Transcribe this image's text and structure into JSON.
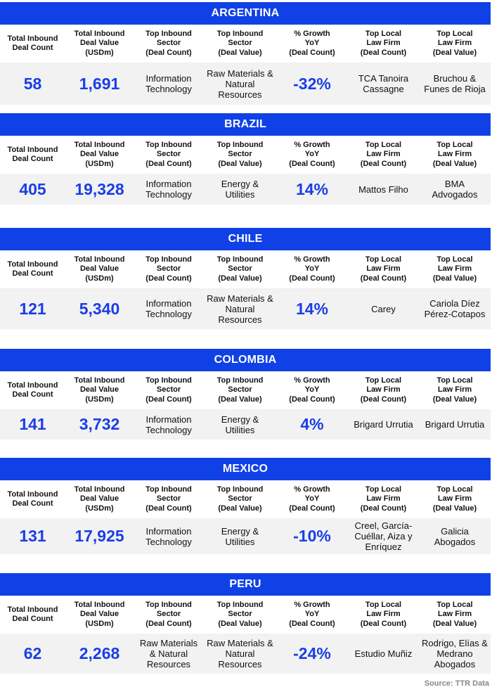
{
  "accent_color": "#1041e6",
  "headers": [
    "Total Inbound Deal Count",
    "Total Inbound Deal Value (USDm)",
    "Top Inbound Sector (Deal Count)",
    "Top Inbound Sector (Deal Value)",
    "% Growth YoY (Deal Count)",
    "Top Local Law Firm (Deal Count)",
    "Top Local Law Firm (Deal Value)"
  ],
  "header_lines": [
    [
      "Total Inbound",
      "Deal Count"
    ],
    [
      "Total Inbound",
      "Deal Value",
      "(USDm)"
    ],
    [
      "Top Inbound",
      "Sector",
      "(Deal Count)"
    ],
    [
      "Top Inbound",
      "Sector",
      "(Deal Value)"
    ],
    [
      "% Growth",
      "YoY",
      "(Deal Count)"
    ],
    [
      "Top Local",
      "Law Firm",
      "(Deal Count)"
    ],
    [
      "Top Local",
      "Law Firm",
      "(Deal Value)"
    ]
  ],
  "sections": [
    {
      "country": "ARGENTINA",
      "values": [
        "58",
        "1,691",
        "Information Technology",
        "Raw Materials & Natural Resources",
        "-32%",
        "TCA Tanoira Cassagne",
        "Bruchou & Funes de Rioja"
      ]
    },
    {
      "country": "BRAZIL",
      "values": [
        "405",
        "19,328",
        "Information Technology",
        "Energy & Utilities",
        "14%",
        "Mattos Filho",
        "BMA Advogados"
      ]
    },
    {
      "country": "CHILE",
      "values": [
        "121",
        "5,340",
        "Information Technology",
        "Raw Materials & Natural Resources",
        "14%",
        "Carey",
        "Cariola Díez Pérez-Cotapos"
      ]
    },
    {
      "country": "COLOMBIA",
      "values": [
        "141",
        "3,732",
        "Information Technology",
        "Energy & Utilities",
        "4%",
        "Brigard Urrutia",
        "Brigard Urrutia"
      ]
    },
    {
      "country": "MEXICO",
      "values": [
        "131",
        "17,925",
        "Information Technology",
        "Energy & Utilities",
        "-10%",
        "Creel, García-Cuéllar, Aiza y Enríquez",
        "Galicia Abogados"
      ]
    },
    {
      "country": "PERU",
      "values": [
        "62",
        "2,268",
        "Raw Materials & Natural Resources",
        "Raw Materials & Natural Resources",
        "-24%",
        "Estudio Muñiz",
        "Rodrigo, Elías & Medrano Abogados"
      ]
    }
  ],
  "source": "Source: TTR Data"
}
